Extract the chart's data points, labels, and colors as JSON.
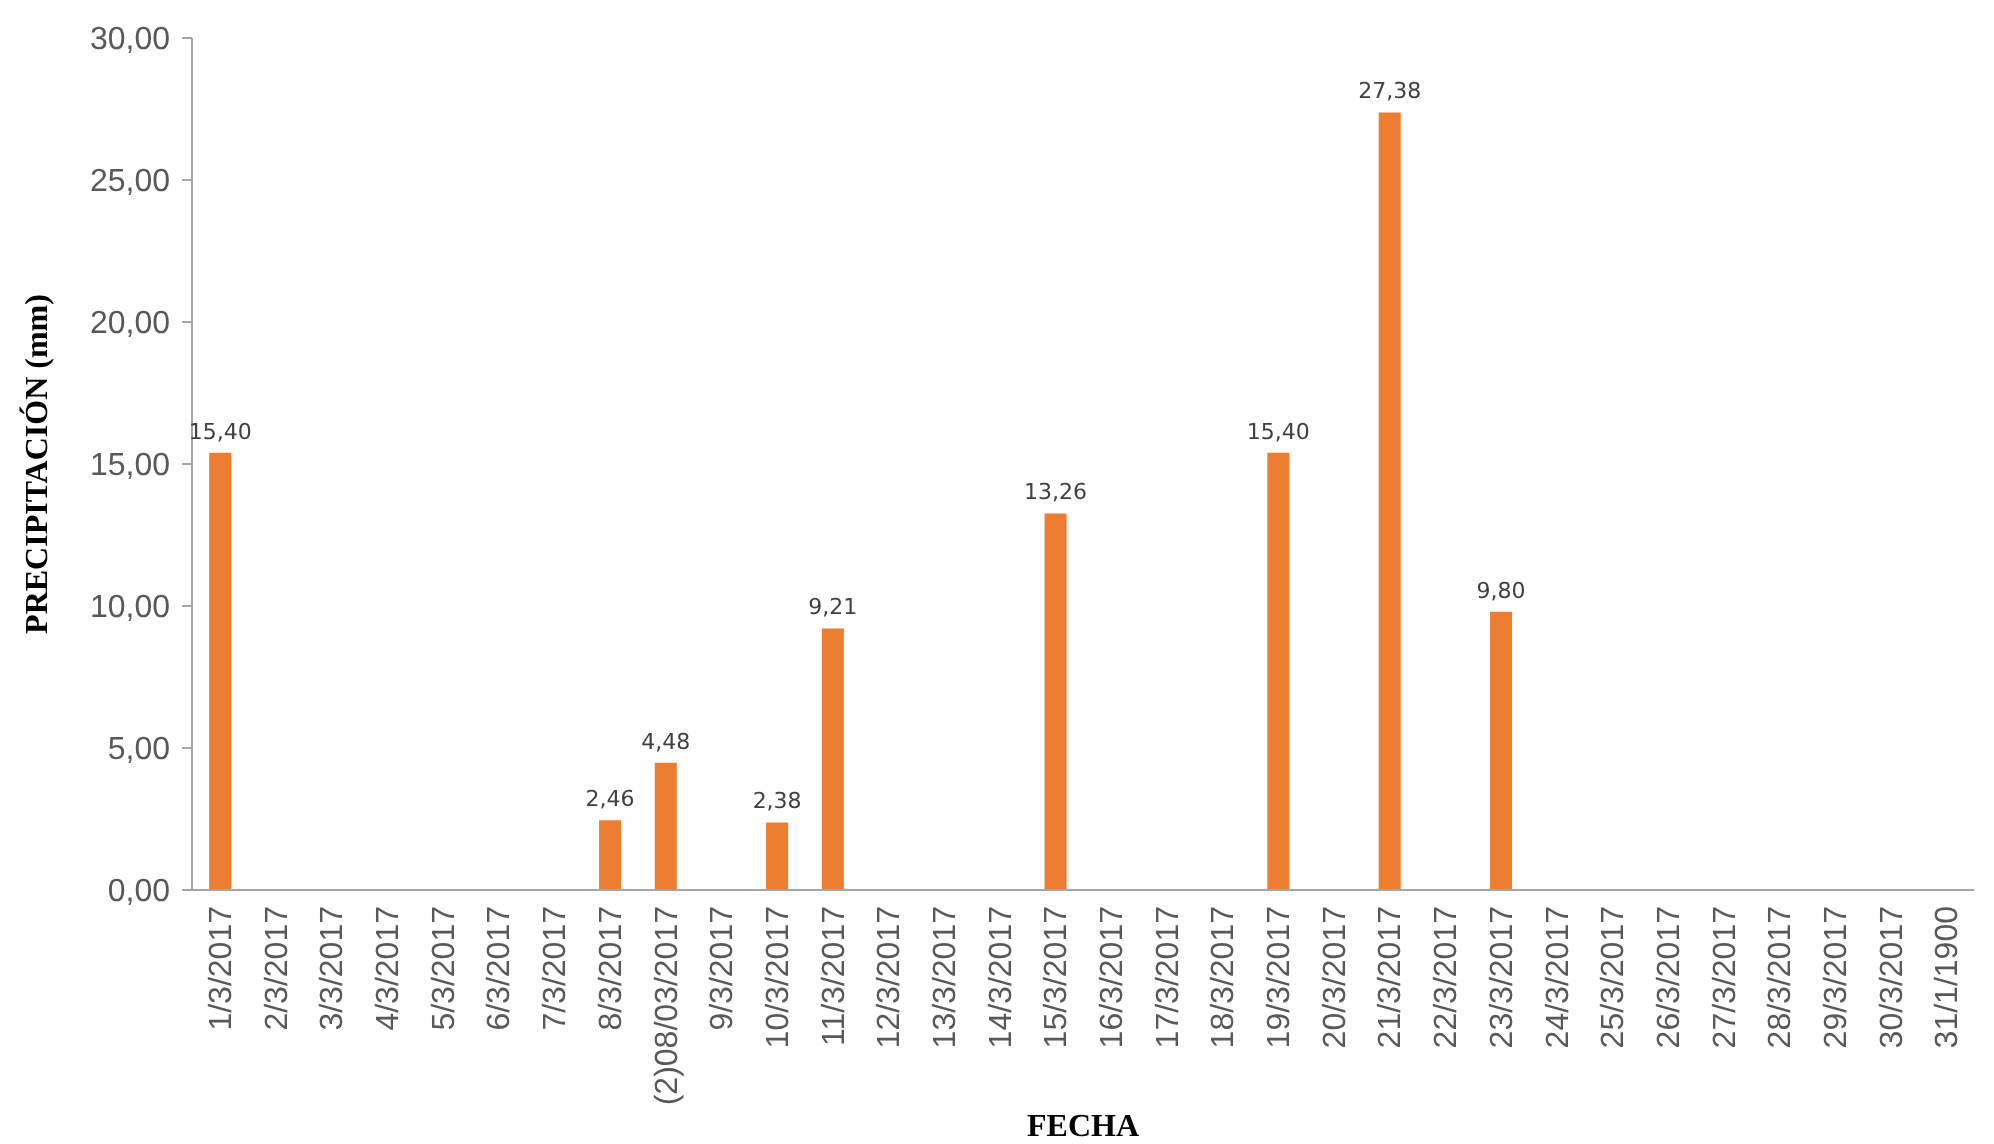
{
  "chart_data": {
    "type": "bar",
    "xlabel": "FECHA",
    "ylabel": "PRECIPITACIÓN (mm)",
    "categories": [
      "1/3/2017",
      "2/3/2017",
      "3/3/2017",
      "4/3/2017",
      "5/3/2017",
      "6/3/2017",
      "7/3/2017",
      "8/3/2017",
      "(2)08/03/2017",
      "9/3/2017",
      "10/3/2017",
      "11/3/2017",
      "12/3/2017",
      "13/3/2017",
      "14/3/2017",
      "15/3/2017",
      "16/3/2017",
      "17/3/2017",
      "18/3/2017",
      "19/3/2017",
      "20/3/2017",
      "21/3/2017",
      "22/3/2017",
      "23/3/2017",
      "24/3/2017",
      "25/3/2017",
      "26/3/2017",
      "27/3/2017",
      "28/3/2017",
      "29/3/2017",
      "30/3/2017",
      "31/1/1900"
    ],
    "values": [
      15.4,
      null,
      null,
      null,
      null,
      null,
      null,
      2.46,
      4.48,
      null,
      2.38,
      9.21,
      null,
      null,
      null,
      13.26,
      null,
      null,
      null,
      15.4,
      null,
      27.38,
      null,
      9.8,
      null,
      null,
      null,
      null,
      null,
      null,
      null,
      null
    ],
    "value_labels": [
      "15,40",
      null,
      null,
      null,
      null,
      null,
      null,
      "2,46",
      "4,48",
      null,
      "2,38",
      "9,21",
      null,
      null,
      null,
      "13,26",
      null,
      null,
      null,
      "15,40",
      null,
      "27,38",
      null,
      "9,80",
      null,
      null,
      null,
      null,
      null,
      null,
      null,
      null
    ],
    "color": "#ed7d31",
    "ylim": [
      0,
      30
    ],
    "yticks": [
      {
        "value": 0,
        "label": "0,00"
      },
      {
        "value": 5,
        "label": "5,00"
      },
      {
        "value": 10,
        "label": "10,00"
      },
      {
        "value": 15,
        "label": "15,00"
      },
      {
        "value": 20,
        "label": "20,00"
      },
      {
        "value": 25,
        "label": "25,00"
      },
      {
        "value": 30,
        "label": "30,00"
      }
    ]
  }
}
